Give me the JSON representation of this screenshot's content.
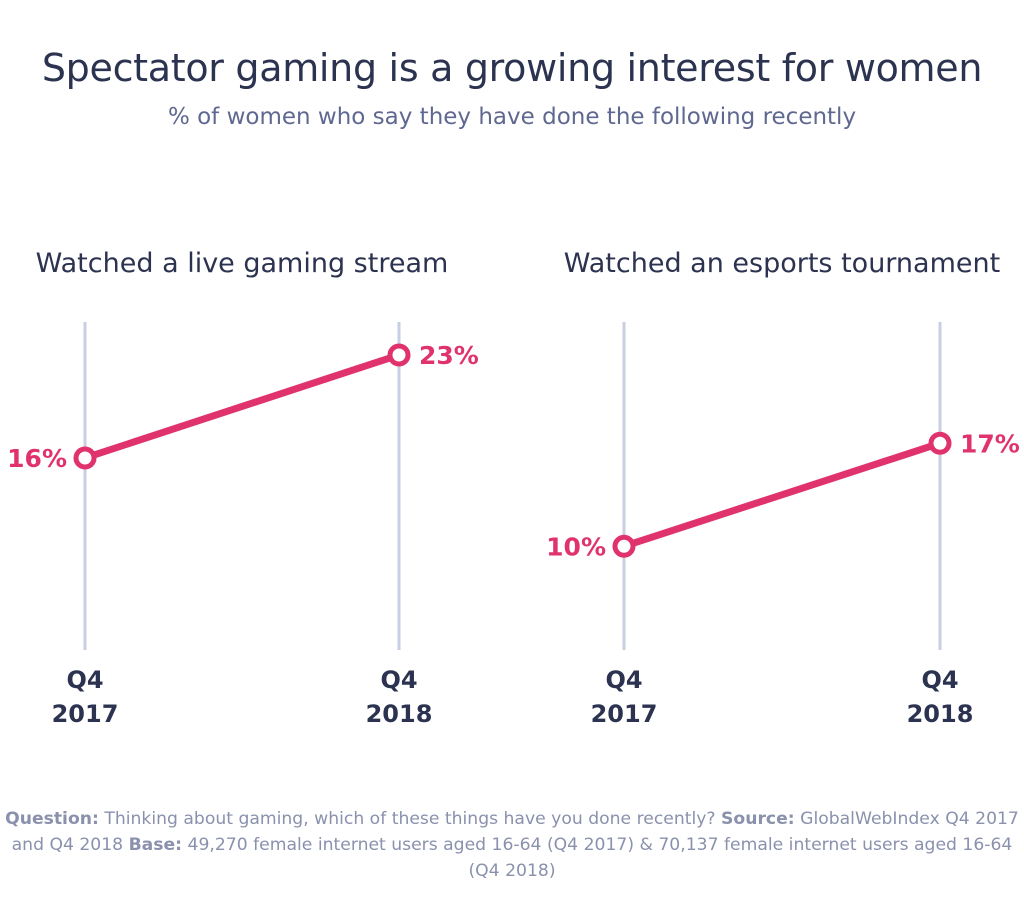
{
  "header": {
    "title": "Spectator gaming is a growing interest for women",
    "subtitle": "% of women who say they have done the following recently"
  },
  "colors": {
    "line": "#e0336e",
    "gridline": "#c9cfe3",
    "label": "#2c3350",
    "footnote": "#8a91ad"
  },
  "chart_data": [
    {
      "type": "line",
      "title": "Watched a live gaming stream",
      "categories": [
        [
          "Q4",
          "2017"
        ],
        [
          "Q4",
          "2018"
        ]
      ],
      "values": [
        16,
        23
      ],
      "value_labels": [
        "16%",
        "23%"
      ],
      "ylim": [
        0,
        30
      ],
      "grid": "vertical",
      "legend": "none"
    },
    {
      "type": "line",
      "title": "Watched an esports tournament",
      "categories": [
        [
          "Q4",
          "2017"
        ],
        [
          "Q4",
          "2018"
        ]
      ],
      "values": [
        10,
        17
      ],
      "value_labels": [
        "10%",
        "17%"
      ],
      "ylim": [
        0,
        30
      ],
      "grid": "vertical",
      "legend": "none"
    }
  ],
  "footnote": {
    "question_label": "Question:",
    "question_text": "Thinking about gaming, which of these things have you done recently?",
    "source_label": "Source:",
    "source_text": "GlobalWebIndex Q4 2017 and Q4 2018",
    "base_label": "Base:",
    "base_text": "49,270 female internet users aged 16-64 (Q4 2017) & 70,137 female internet users aged 16-64 (Q4 2018)"
  }
}
